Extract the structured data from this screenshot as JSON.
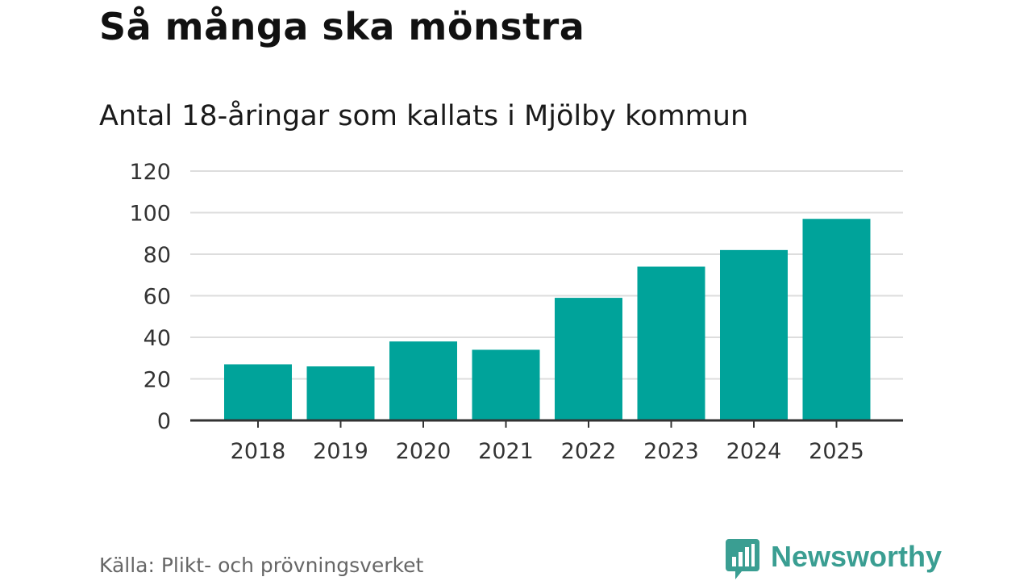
{
  "header": {
    "title": "Så många ska mönstra",
    "subtitle": "Antal 18-åringar som kallats i Mjölby kommun"
  },
  "footer": {
    "source": "Källa: Plikt- och prövningsverket",
    "brand": "Newsworthy",
    "brand_icon": "bar-chart-bubble-icon"
  },
  "colors": {
    "bar": "#00a39a",
    "grid": "#dddddd",
    "axis": "#333333",
    "brand": "#3a9e92"
  },
  "chart_data": {
    "type": "bar",
    "title": "Så många ska mönstra",
    "subtitle": "Antal 18-åringar som kallats i Mjölby kommun",
    "categories": [
      "2018",
      "2019",
      "2020",
      "2021",
      "2022",
      "2023",
      "2024",
      "2025"
    ],
    "values": [
      27,
      26,
      38,
      34,
      59,
      74,
      82,
      97
    ],
    "ylim": [
      0,
      120
    ],
    "yticks": [
      0,
      20,
      40,
      60,
      80,
      100,
      120
    ],
    "xlabel": "",
    "ylabel": "",
    "grid": true
  }
}
